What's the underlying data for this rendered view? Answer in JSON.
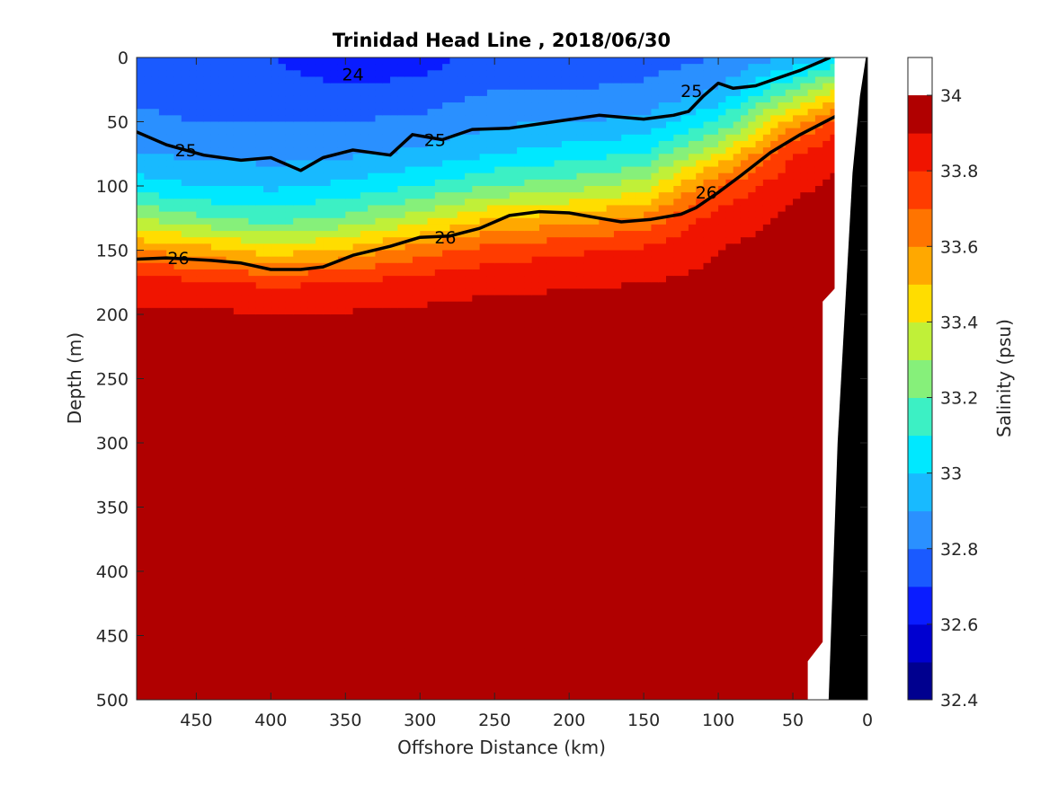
{
  "chart_data": {
    "type": "heatmap",
    "title": "Trinidad Head Line , 2018/06/30",
    "xlabel": "Offshore Distance (km)",
    "ylabel": "Depth (m)",
    "colorbar_label": "Salinity (psu)",
    "x_reversed": true,
    "xlim": [
      490,
      0
    ],
    "ylim": [
      0,
      500
    ],
    "y_reversed": true,
    "x_ticks": [
      "450",
      "400",
      "350",
      "300",
      "250",
      "200",
      "150",
      "100",
      "50",
      "0"
    ],
    "x_tick_values": [
      450,
      400,
      350,
      300,
      250,
      200,
      150,
      100,
      50,
      0
    ],
    "y_ticks": [
      "0",
      "50",
      "100",
      "150",
      "200",
      "250",
      "300",
      "350",
      "400",
      "450",
      "500"
    ],
    "y_tick_values": [
      0,
      50,
      100,
      150,
      200,
      250,
      300,
      350,
      400,
      450,
      500
    ],
    "colorbar": {
      "range": [
        32.4,
        34.1
      ],
      "tick_labels": [
        "32.4",
        "32.6",
        "32.8",
        "33",
        "33.2",
        "33.4",
        "33.6",
        "33.8",
        "34"
      ],
      "tick_values": [
        32.4,
        32.6,
        32.8,
        33.0,
        33.2,
        33.4,
        33.6,
        33.8,
        34.0
      ],
      "levels": [
        32.4,
        32.5,
        32.6,
        32.7,
        32.8,
        32.9,
        33.0,
        33.1,
        33.2,
        33.3,
        33.4,
        33.5,
        33.6,
        33.7,
        33.8,
        33.9,
        34.0
      ],
      "colors": [
        "#00008f",
        "#0000d0",
        "#0a1cff",
        "#1a5aff",
        "#2a90ff",
        "#18baff",
        "#00e8ff",
        "#3cf0c4",
        "#86f07a",
        "#c0f038",
        "#ffdd00",
        "#ffa800",
        "#ff7400",
        "#ff3c00",
        "#f01400",
        "#b00000"
      ]
    },
    "salinity_profiles": {
      "description_depths": [
        0,
        25,
        50,
        75,
        100,
        125,
        150,
        175,
        200,
        250,
        300,
        350,
        400,
        450,
        500
      ],
      "stations": [
        {
          "x": 490,
          "values": [
            32.75,
            32.78,
            32.82,
            32.9,
            33.05,
            33.3,
            33.6,
            33.85,
            33.92,
            33.95,
            33.97,
            34.0,
            34.02,
            34.04,
            34.05
          ]
        },
        {
          "x": 450,
          "values": [
            32.72,
            32.76,
            32.8,
            32.88,
            33.0,
            33.22,
            33.55,
            33.82,
            33.92,
            33.96,
            33.98,
            34.01,
            34.05,
            34.07,
            34.08
          ]
        },
        {
          "x": 400,
          "values": [
            32.7,
            32.75,
            32.8,
            32.86,
            32.98,
            33.15,
            33.45,
            33.78,
            33.9,
            33.95,
            33.98,
            34.01,
            34.06,
            34.08,
            34.08
          ]
        },
        {
          "x": 350,
          "values": [
            32.6,
            32.72,
            32.8,
            32.88,
            33.02,
            33.22,
            33.52,
            33.8,
            33.91,
            33.96,
            33.98,
            34.02,
            34.06,
            34.08,
            34.09
          ]
        },
        {
          "x": 300,
          "values": [
            32.65,
            32.74,
            32.82,
            32.92,
            33.1,
            33.35,
            33.65,
            33.85,
            33.92,
            33.96,
            33.99,
            34.03,
            34.07,
            34.08,
            34.09
          ]
        },
        {
          "x": 250,
          "values": [
            32.75,
            32.8,
            32.88,
            33.0,
            33.2,
            33.5,
            33.75,
            33.88,
            33.93,
            33.97,
            34.0,
            34.04,
            34.07,
            34.08,
            34.1
          ]
        },
        {
          "x": 200,
          "values": [
            32.72,
            32.8,
            32.9,
            33.05,
            33.25,
            33.55,
            33.78,
            33.89,
            33.93,
            33.97,
            34.0,
            34.05,
            34.07,
            34.08,
            34.1
          ]
        },
        {
          "x": 150,
          "values": [
            32.75,
            32.82,
            32.92,
            33.1,
            33.35,
            33.62,
            33.82,
            33.9,
            33.93,
            33.97,
            34.0,
            34.03,
            34.06,
            34.08,
            34.1
          ]
        },
        {
          "x": 100,
          "values": [
            32.8,
            32.9,
            33.1,
            33.4,
            33.7,
            33.85,
            33.9,
            33.92,
            33.95,
            33.98,
            34.03,
            34.06,
            34.08,
            34.09,
            34.1
          ]
        },
        {
          "x": 50,
          "values": [
            32.9,
            33.2,
            33.55,
            33.8,
            33.88,
            33.92,
            33.94,
            33.96,
            34.02,
            34.05,
            34.07,
            34.08,
            34.09,
            34.1,
            34.1
          ]
        },
        {
          "x": 20,
          "values": [
            33.0,
            33.4,
            33.75,
            33.88,
            33.92,
            33.94,
            33.96,
            33.98,
            34.02,
            34.05,
            34.07,
            34.08,
            34.09,
            34.1,
            34.1
          ]
        }
      ]
    },
    "density_contours": {
      "thick": [
        {
          "label": "25",
          "points": [
            [
              490,
              58
            ],
            [
              470,
              68
            ],
            [
              445,
              76
            ],
            [
              420,
              80
            ],
            [
              400,
              78
            ],
            [
              380,
              88
            ],
            [
              365,
              78
            ],
            [
              345,
              72
            ],
            [
              320,
              76
            ],
            [
              305,
              60
            ],
            [
              285,
              64
            ],
            [
              265,
              56
            ],
            [
              240,
              55
            ],
            [
              210,
              50
            ],
            [
              180,
              45
            ],
            [
              150,
              48
            ],
            [
              130,
              45
            ],
            [
              120,
              42
            ],
            [
              110,
              30
            ],
            [
              100,
              20
            ],
            [
              90,
              24
            ],
            [
              75,
              22
            ],
            [
              60,
              16
            ],
            [
              45,
              10
            ],
            [
              25,
              0
            ]
          ]
        },
        {
          "label": "26",
          "points": [
            [
              490,
              157
            ],
            [
              470,
              156
            ],
            [
              440,
              158
            ],
            [
              420,
              160
            ],
            [
              400,
              165
            ],
            [
              380,
              165
            ],
            [
              365,
              163
            ],
            [
              345,
              154
            ],
            [
              320,
              147
            ],
            [
              300,
              140
            ],
            [
              280,
              139
            ],
            [
              260,
              133
            ],
            [
              240,
              123
            ],
            [
              220,
              120
            ],
            [
              200,
              121
            ],
            [
              180,
              125
            ],
            [
              165,
              128
            ],
            [
              145,
              126
            ],
            [
              125,
              122
            ],
            [
              115,
              117
            ],
            [
              100,
              105
            ],
            [
              85,
              92
            ],
            [
              65,
              74
            ],
            [
              45,
              60
            ],
            [
              20,
              45
            ]
          ]
        }
      ],
      "thick_labels": [
        {
          "text": "25",
          "x": 457,
          "y": 72
        },
        {
          "text": "25",
          "x": 290,
          "y": 64
        },
        {
          "text": "25",
          "x": 118,
          "y": 26
        },
        {
          "text": "26",
          "x": 462,
          "y": 156
        },
        {
          "text": "26",
          "x": 283,
          "y": 140
        },
        {
          "text": "26",
          "x": 108,
          "y": 105
        },
        {
          "text": "24",
          "x": 345,
          "y": 13
        }
      ]
    },
    "bathymetry_label": ""
  }
}
